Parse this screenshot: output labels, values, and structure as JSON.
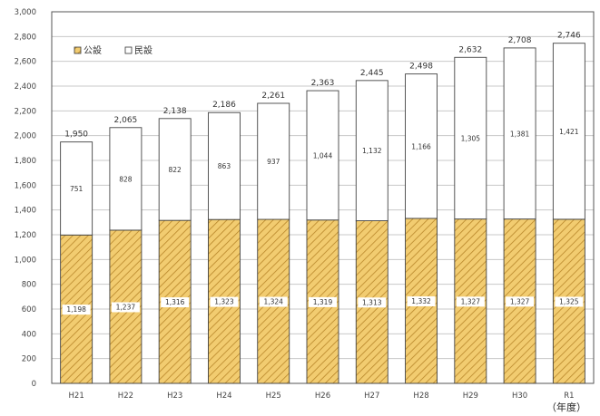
{
  "chart_data": {
    "type": "bar",
    "stacked": true,
    "categories": [
      "H21",
      "H22",
      "H23",
      "H24",
      "H25",
      "H26",
      "H27",
      "H28",
      "H29",
      "H30",
      "R1"
    ],
    "series": [
      {
        "name": "公設",
        "color": "#e8b84a",
        "values": [
          1198,
          1237,
          1316,
          1323,
          1324,
          1319,
          1313,
          1332,
          1327,
          1327,
          1325
        ]
      },
      {
        "name": "民設",
        "color": "#ffffff",
        "values": [
          751,
          828,
          822,
          863,
          937,
          1044,
          1132,
          1166,
          1305,
          1381,
          1421
        ]
      }
    ],
    "totals": [
      1950,
      2065,
      2138,
      2186,
      2261,
      2363,
      2445,
      2498,
      2632,
      2708,
      2746
    ],
    "ylim": [
      0,
      3000
    ],
    "yticks": [
      0,
      200,
      400,
      600,
      800,
      1000,
      1200,
      1400,
      1600,
      1800,
      2000,
      2200,
      2400,
      2600,
      2800,
      3000
    ],
    "ytick_labels": [
      "0",
      "200",
      "400",
      "600",
      "800",
      "1,000",
      "1,200",
      "1,400",
      "1,600",
      "1,800",
      "2,000",
      "2,200",
      "2,400",
      "2,600",
      "2,800",
      "3,000"
    ],
    "total_labels": [
      "1,950",
      "2,065",
      "2,138",
      "2,186",
      "2,261",
      "2,363",
      "2,445",
      "2,498",
      "2,632",
      "2,708",
      "2,746"
    ],
    "value_labels_bottom": [
      "1,198",
      "1,237",
      "1,316",
      "1,323",
      "1,324",
      "1,319",
      "1,313",
      "1,332",
      "1,327",
      "1,327",
      "1,325"
    ],
    "value_labels_top": [
      "751",
      "828",
      "822",
      "863",
      "937",
      "1,044",
      "1,132",
      "1,166",
      "1,305",
      "1,381",
      "1,421"
    ],
    "grid": true,
    "legend": {
      "position": "top-left",
      "items": [
        "公設",
        "民設"
      ]
    },
    "xlabel": "（年度）"
  }
}
